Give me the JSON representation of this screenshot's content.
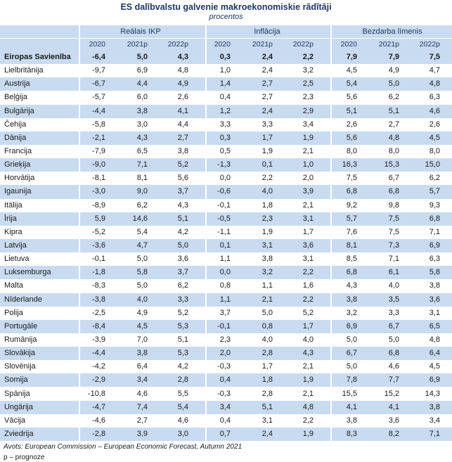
{
  "header": {
    "title": "ES dalībvalstu galvenie makroekonomiskie rādītāji",
    "subtitle": "procentos"
  },
  "table": {
    "groups": [
      "Reālais IKP",
      "Inflācija",
      "Bezdarba līmenis"
    ],
    "columns": [
      "2020",
      "2021p",
      "2022p",
      "2020",
      "2021p",
      "2022p",
      "2020",
      "2021p",
      "2022p"
    ],
    "rows": [
      [
        "Eiropas Savienība",
        "-6,4",
        "5,0",
        "4,3",
        "0,3",
        "2,4",
        "2,2",
        "7,9",
        "7,9",
        "7,5"
      ],
      [
        "Lielbritānija",
        "-9,7",
        "6,9",
        "4,8",
        "1,0",
        "2,4",
        "3,2",
        "4,5",
        "4,9",
        "4,7"
      ],
      [
        "Austrija",
        "-6,7",
        "4,4",
        "4,9",
        "1,4",
        "2,7",
        "2,5",
        "5,4",
        "5,0",
        "4,8"
      ],
      [
        "Beļģija",
        "-5,7",
        "6,0",
        "2,6",
        "0,4",
        "2,7",
        "2,3",
        "5,6",
        "6,2",
        "6,3"
      ],
      [
        "Bulgārija",
        "-4,4",
        "3,8",
        "4,1",
        "1,2",
        "2,4",
        "2,9",
        "5,1",
        "5,1",
        "4,6"
      ],
      [
        "Čehija",
        "-5,8",
        "3,0",
        "4,4",
        "3,3",
        "3,3",
        "3,4",
        "2,6",
        "2,7",
        "2,6"
      ],
      [
        "Dānija",
        "-2,1",
        "4,3",
        "2,7",
        "0,3",
        "1,7",
        "1,9",
        "5,6",
        "4,8",
        "4,5"
      ],
      [
        "Francija",
        "-7,9",
        "6,5",
        "3,8",
        "0,5",
        "1,9",
        "2,1",
        "8,0",
        "8,0",
        "8,0"
      ],
      [
        "Grieķija",
        "-9,0",
        "7,1",
        "5,2",
        "-1,3",
        "0,1",
        "1,0",
        "16,3",
        "15,3",
        "15,0"
      ],
      [
        "Horvātija",
        "-8,1",
        "8,1",
        "5,6",
        "0,0",
        "2,2",
        "2,0",
        "7,5",
        "6,7",
        "6,2"
      ],
      [
        "Igaunija",
        "-3,0",
        "9,0",
        "3,7",
        "-0,6",
        "4,0",
        "3,9",
        "6,8",
        "6,8",
        "5,7"
      ],
      [
        "Itālija",
        "-8,9",
        "6,2",
        "4,3",
        "-0,1",
        "1,8",
        "2,1",
        "9,2",
        "9,8",
        "9,3"
      ],
      [
        "Īrija",
        "5,9",
        "14,6",
        "5,1",
        "-0,5",
        "2,3",
        "3,1",
        "5,7",
        "7,5",
        "6,8"
      ],
      [
        "Kipra",
        "-5,2",
        "5,4",
        "4,2",
        "-1,1",
        "1,9",
        "1,7",
        "7,6",
        "7,5",
        "7,1"
      ],
      [
        "Latvija",
        "-3,6",
        "4,7",
        "5,0",
        "0,1",
        "3,1",
        "3,6",
        "8,1",
        "7,3",
        "6,9"
      ],
      [
        "Lietuva",
        "-0,1",
        "5,0",
        "3,6",
        "1,1",
        "3,8",
        "3,1",
        "8,5",
        "7,1",
        "6,3"
      ],
      [
        "Luksemburga",
        "-1,8",
        "5,8",
        "3,7",
        "0,0",
        "3,2",
        "2,2",
        "6,8",
        "6,1",
        "5,8"
      ],
      [
        "Malta",
        "-8,3",
        "5,0",
        "6,2",
        "0,8",
        "1,1",
        "1,6",
        "4,3",
        "4,0",
        "3,8"
      ],
      [
        "Nīderlande",
        "-3,8",
        "4,0",
        "3,3",
        "1,1",
        "2,1",
        "2,2",
        "3,8",
        "3,5",
        "3,6"
      ],
      [
        "Polija",
        "-2,5",
        "4,9",
        "5,2",
        "3,7",
        "5,0",
        "5,2",
        "3,2",
        "3,3",
        "3,1"
      ],
      [
        "Portugāle",
        "-8,4",
        "4,5",
        "5,3",
        "-0,1",
        "0,8",
        "1,7",
        "6,9",
        "6,7",
        "6,5"
      ],
      [
        "Rumānija",
        "-3,9",
        "7,0",
        "5,1",
        "2,3",
        "4,0",
        "4,0",
        "5,0",
        "5,0",
        "4,8"
      ],
      [
        "Slovākija",
        "-4,4",
        "3,8",
        "5,3",
        "2,0",
        "2,8",
        "4,3",
        "6,7",
        "6,8",
        "6,4"
      ],
      [
        "Slovēnija",
        "-4,2",
        "6,4",
        "4,2",
        "-0,3",
        "1,7",
        "2,1",
        "5,0",
        "4,6",
        "4,5"
      ],
      [
        "Somija",
        "-2,9",
        "3,4",
        "2,8",
        "0,4",
        "1,8",
        "1,9",
        "7,8",
        "7,7",
        "6,9"
      ],
      [
        "Spānija",
        "-10,8",
        "4,6",
        "5,5",
        "-0,3",
        "2,8",
        "2,1",
        "15,5",
        "15,2",
        "14,3"
      ],
      [
        "Ungārija",
        "-4,7",
        "7,4",
        "5,4",
        "3,4",
        "5,1",
        "4,8",
        "4,1",
        "4,1",
        "3,8"
      ],
      [
        "Vācija",
        "-4,6",
        "2,7",
        "4,6",
        "0,4",
        "3,1",
        "2,2",
        "3,8",
        "3,6",
        "3,4"
      ],
      [
        "Zviedrija",
        "-2,8",
        "3,9",
        "3,0",
        "0,7",
        "2,4",
        "1,9",
        "8,3",
        "8,2",
        "7,1"
      ]
    ]
  },
  "footer": {
    "source": "Avots: European Commission – European Economic Forecast, Autumn 2021",
    "note": "p – prognoze"
  }
}
